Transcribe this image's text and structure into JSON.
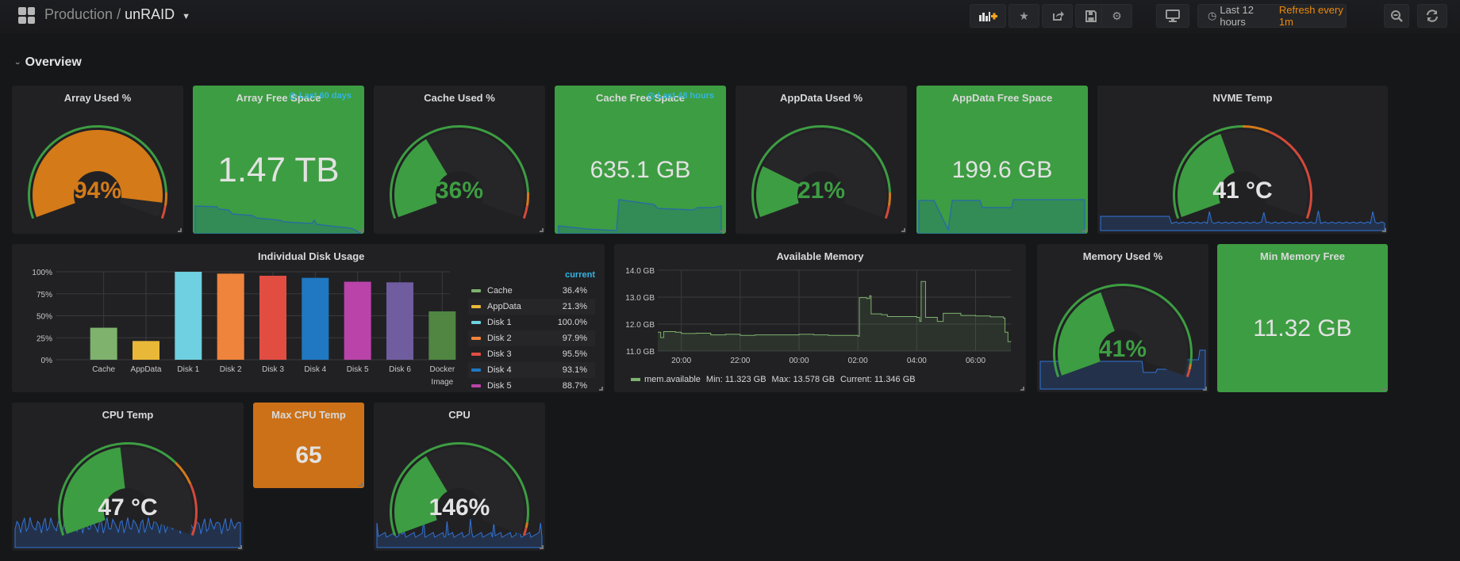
{
  "header": {
    "folder": "Production",
    "separator": "/",
    "title": "unRAID",
    "time_range": "Last 12 hours",
    "refresh": "Refresh every 1m",
    "buttons": [
      "add-panel",
      "star",
      "share",
      "save",
      "settings",
      "tv-mode",
      "zoom-out",
      "refresh"
    ]
  },
  "row": {
    "title": "Overview"
  },
  "colors": {
    "green": "#3d9d42",
    "orange": "#d47a18",
    "red": "#d44a3a",
    "blue": "#3274d9",
    "link": "#33b5e5",
    "refresh": "#eb8a0e"
  },
  "panels": {
    "array_used": {
      "title": "Array Used %",
      "value": "94%",
      "percent": 94,
      "color": "#d47a18"
    },
    "array_free": {
      "title": "Array Free Space",
      "value": "1.47 TB",
      "timeshift": "Last 60 days"
    },
    "cache_used": {
      "title": "Cache Used %",
      "value": "36%",
      "percent": 36,
      "color": "#3d9d42"
    },
    "cache_free": {
      "title": "Cache Free Space",
      "value": "635.1 GB",
      "timeshift": "Last 48 hours"
    },
    "appdata_used": {
      "title": "AppData Used %",
      "value": "21%",
      "percent": 21,
      "color": "#3d9d42"
    },
    "appdata_free": {
      "title": "AppData Free Space",
      "value": "199.6 GB"
    },
    "nvme_temp": {
      "title": "NVME Temp",
      "value": "41 °C",
      "percent": 41,
      "color": "#e2e2e2"
    },
    "disk_usage": {
      "title": "Individual Disk Usage",
      "legend_header": "current"
    },
    "available_memory": {
      "title": "Available Memory",
      "legend_name": "mem.available",
      "legend_min": "Min: 11.323 GB",
      "legend_max": "Max: 13.578 GB",
      "legend_current": "Current: 11.346 GB"
    },
    "memory_used": {
      "title": "Memory Used %",
      "value": "41%",
      "percent": 41,
      "color": "#3d9d42"
    },
    "min_memory_free": {
      "title": "Min Memory Free",
      "value": "11.32 GB"
    },
    "cpu_temp": {
      "title": "CPU Temp",
      "value": "47 °C",
      "percent": 47,
      "color": "#e2e2e2"
    },
    "max_cpu_temp": {
      "title": "Max CPU Temp",
      "value": "65"
    },
    "cpu": {
      "title": "CPU",
      "value": "146%",
      "percent": 36,
      "color": "#e2e2e2"
    }
  },
  "chart_data": [
    {
      "type": "bar",
      "title": "Individual Disk Usage",
      "categories": [
        "Cache",
        "AppData",
        "Disk 1",
        "Disk 2",
        "Disk 3",
        "Disk 4",
        "Disk 5",
        "Disk 6",
        "Docker Image"
      ],
      "values": [
        36.4,
        21.3,
        100.0,
        97.9,
        95.5,
        93.1,
        88.7,
        88.0,
        55.0
      ],
      "colors": [
        "#7eb26d",
        "#eab839",
        "#6ed0e0",
        "#ef843c",
        "#e24d42",
        "#1f78c1",
        "#ba43a9",
        "#705da0",
        "#508642"
      ],
      "yticks": [
        "0%",
        "25%",
        "50%",
        "75%",
        "100%"
      ],
      "ylim": [
        0,
        100
      ],
      "legend": {
        "header": "current",
        "entries": [
          {
            "name": "Cache",
            "value": "36.4%"
          },
          {
            "name": "AppData",
            "value": "21.3%"
          },
          {
            "name": "Disk 1",
            "value": "100.0%"
          },
          {
            "name": "Disk 2",
            "value": "97.9%"
          },
          {
            "name": "Disk 3",
            "value": "95.5%"
          },
          {
            "name": "Disk 4",
            "value": "93.1%"
          },
          {
            "name": "Disk 5",
            "value": "88.7%"
          }
        ]
      }
    },
    {
      "type": "area",
      "title": "Available Memory",
      "series_name": "mem.available",
      "xticks": [
        "20:00",
        "22:00",
        "00:00",
        "02:00",
        "04:00",
        "06:00"
      ],
      "yticks": [
        "11.0 GB",
        "12.0 GB",
        "13.0 GB",
        "14.0 GB"
      ],
      "ylim": [
        11.0,
        14.0
      ],
      "xrange_hours": [
        19.2,
        31.2
      ],
      "points": [
        [
          19.2,
          11.7
        ],
        [
          19.3,
          11.5
        ],
        [
          19.4,
          11.72
        ],
        [
          19.8,
          11.7
        ],
        [
          20.0,
          11.65
        ],
        [
          20.5,
          11.66
        ],
        [
          21.0,
          11.6
        ],
        [
          21.5,
          11.62
        ],
        [
          22.0,
          11.58
        ],
        [
          22.5,
          11.6
        ],
        [
          23.0,
          11.6
        ],
        [
          23.5,
          11.6
        ],
        [
          24.0,
          11.62
        ],
        [
          24.5,
          11.6
        ],
        [
          25.0,
          11.58
        ],
        [
          25.5,
          11.58
        ],
        [
          26.0,
          11.55
        ],
        [
          26.05,
          12.98
        ],
        [
          26.3,
          12.95
        ],
        [
          26.4,
          13.05
        ],
        [
          26.45,
          12.38
        ],
        [
          26.8,
          12.35
        ],
        [
          27.0,
          12.28
        ],
        [
          27.5,
          12.28
        ],
        [
          28.0,
          12.25
        ],
        [
          28.1,
          12.1
        ],
        [
          28.15,
          13.58
        ],
        [
          28.3,
          12.25
        ],
        [
          28.6,
          12.25
        ],
        [
          28.7,
          12.1
        ],
        [
          28.9,
          12.4
        ],
        [
          29.5,
          12.32
        ],
        [
          30.0,
          12.3
        ],
        [
          30.5,
          12.27
        ],
        [
          30.95,
          12.22
        ],
        [
          31.0,
          11.7
        ],
        [
          31.1,
          11.35
        ],
        [
          31.2,
          11.346
        ]
      ]
    }
  ]
}
